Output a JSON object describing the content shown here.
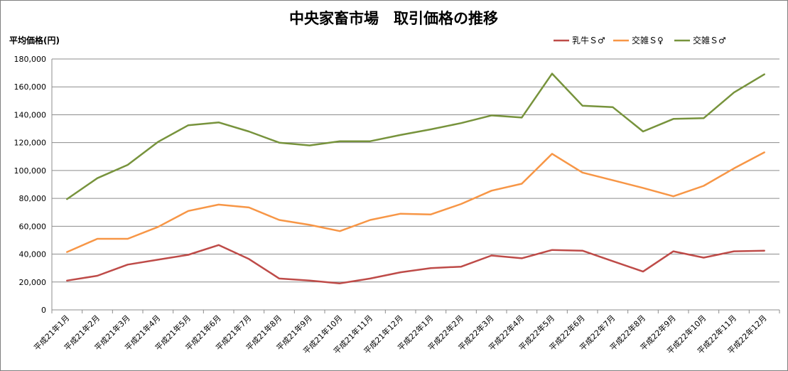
{
  "chart_data": {
    "type": "line",
    "title": "中央家畜市場　取引価格の推移",
    "ylabel": "平均価格(円)",
    "xlabel": "",
    "ylim": [
      0,
      180000
    ],
    "ytick_values": [
      0,
      20000,
      40000,
      60000,
      80000,
      100000,
      120000,
      140000,
      160000,
      180000
    ],
    "ytick_labels": [
      "0",
      "20,000",
      "40,000",
      "60,000",
      "80,000",
      "100,000",
      "120,000",
      "140,000",
      "160,000",
      "180,000"
    ],
    "grid": true,
    "legend_position": "top-right",
    "categories": [
      "平成21年1月",
      "平成21年2月",
      "平成21年3月",
      "平成21年4月",
      "平成21年5月",
      "平成21年6月",
      "平成21年7月",
      "平成21年8月",
      "平成21年9月",
      "平成21年10月",
      "平成21年11月",
      "平成21年12月",
      "平成22年1月",
      "平成22年2月",
      "平成22年3月",
      "平成22年4月",
      "平成22年5月",
      "平成22年6月",
      "平成22年7月",
      "平成22年8月",
      "平成22年9月",
      "平成22年10月",
      "平成22年11月",
      "平成22年12月"
    ],
    "series": [
      {
        "name": "乳牛Ｓ♂",
        "color": "#be4b48",
        "values": [
          21000,
          24500,
          32500,
          36000,
          39500,
          46500,
          36500,
          22500,
          21000,
          19000,
          22500,
          27000,
          30000,
          31000,
          39000,
          37000,
          43000,
          42500,
          35000,
          27500,
          42000,
          37500,
          42000,
          42500
        ]
      },
      {
        "name": "交雑Ｓ♀",
        "color": "#f79646",
        "values": [
          41500,
          51000,
          51000,
          59500,
          71000,
          75500,
          73500,
          64500,
          61000,
          56500,
          64500,
          69000,
          68500,
          76000,
          85500,
          90500,
          112000,
          98500,
          93000,
          87500,
          81500,
          89000,
          101500,
          113000
        ]
      },
      {
        "name": "交雑Ｓ♂",
        "color": "#77933c",
        "values": [
          79500,
          94500,
          104000,
          120500,
          132500,
          134500,
          128000,
          120000,
          118000,
          121000,
          121000,
          125500,
          129500,
          134000,
          139500,
          138000,
          169500,
          146500,
          145500,
          128000,
          137000,
          137500,
          156000,
          169000
        ]
      }
    ]
  }
}
